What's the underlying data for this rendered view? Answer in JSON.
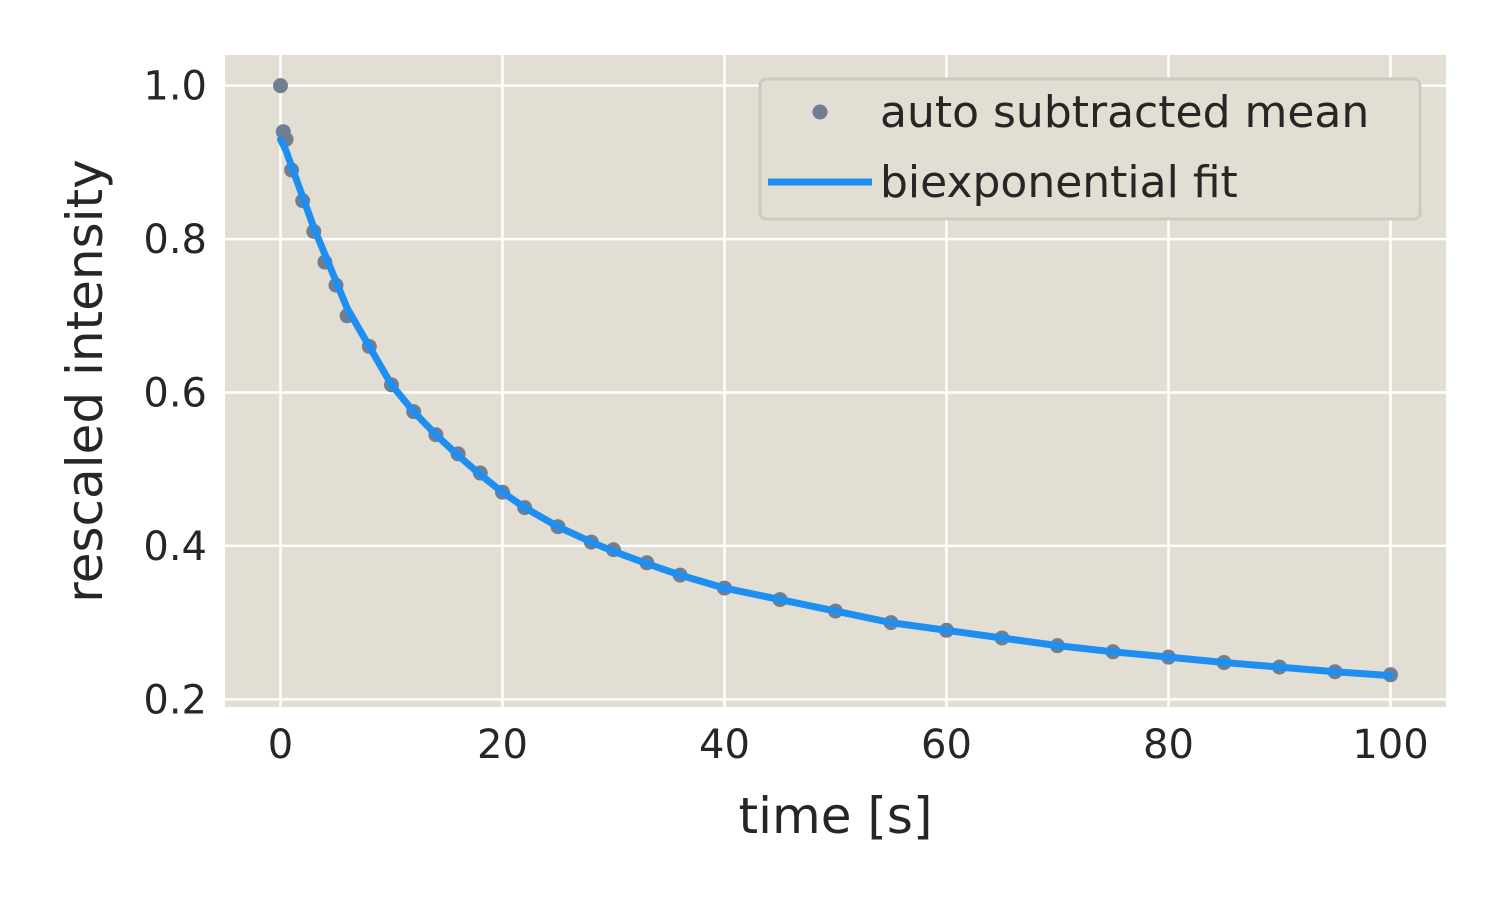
{
  "chart_data": {
    "type": "scatter",
    "title": "",
    "xlabel": "time [s]",
    "ylabel": "rescaled intensity",
    "xlim": [
      -5,
      105
    ],
    "ylim": [
      0.19,
      1.04
    ],
    "xticks": [
      0,
      20,
      40,
      60,
      80,
      100
    ],
    "xtick_labels": [
      "0",
      "20",
      "40",
      "60",
      "80",
      "100"
    ],
    "yticks": [
      0.2,
      0.4,
      0.6,
      0.8,
      1.0
    ],
    "ytick_labels": [
      "0.2",
      "0.4",
      "0.6",
      "0.8",
      "1.0"
    ],
    "grid": true,
    "legend_position": "top-right",
    "colors": {
      "background": "#e3ded3",
      "grid": "#ffffff",
      "points": "#6f7f91",
      "fit": "#1f8ef1"
    },
    "series": [
      {
        "name": "auto subtracted mean",
        "kind": "points",
        "x": [
          0,
          0.25,
          0.5,
          1,
          2,
          3,
          4,
          5,
          6,
          8,
          10,
          12,
          14,
          16,
          18,
          20,
          22,
          25,
          28,
          30,
          33,
          36,
          40,
          45,
          50,
          55,
          60,
          65,
          70,
          75,
          80,
          85,
          90,
          95,
          100
        ],
        "y": [
          1.0,
          0.94,
          0.93,
          0.89,
          0.85,
          0.81,
          0.77,
          0.74,
          0.7,
          0.66,
          0.61,
          0.575,
          0.545,
          0.52,
          0.495,
          0.47,
          0.45,
          0.425,
          0.405,
          0.395,
          0.378,
          0.362,
          0.345,
          0.33,
          0.315,
          0.3,
          0.29,
          0.28,
          0.27,
          0.262,
          0.255,
          0.248,
          0.242,
          0.236,
          0.232
        ]
      },
      {
        "name": "biexponential fit",
        "kind": "line",
        "x": [
          0,
          0.5,
          1,
          2,
          3,
          4,
          5,
          6,
          8,
          10,
          12,
          14,
          16,
          18,
          20,
          22,
          25,
          28,
          30,
          33,
          36,
          40,
          45,
          50,
          55,
          60,
          65,
          70,
          75,
          80,
          85,
          90,
          95,
          100
        ],
        "y": [
          0.93,
          0.915,
          0.895,
          0.855,
          0.815,
          0.78,
          0.745,
          0.71,
          0.66,
          0.61,
          0.575,
          0.545,
          0.518,
          0.493,
          0.47,
          0.45,
          0.425,
          0.405,
          0.393,
          0.377,
          0.362,
          0.345,
          0.33,
          0.315,
          0.3,
          0.29,
          0.28,
          0.27,
          0.262,
          0.255,
          0.248,
          0.242,
          0.236,
          0.231
        ]
      }
    ]
  }
}
